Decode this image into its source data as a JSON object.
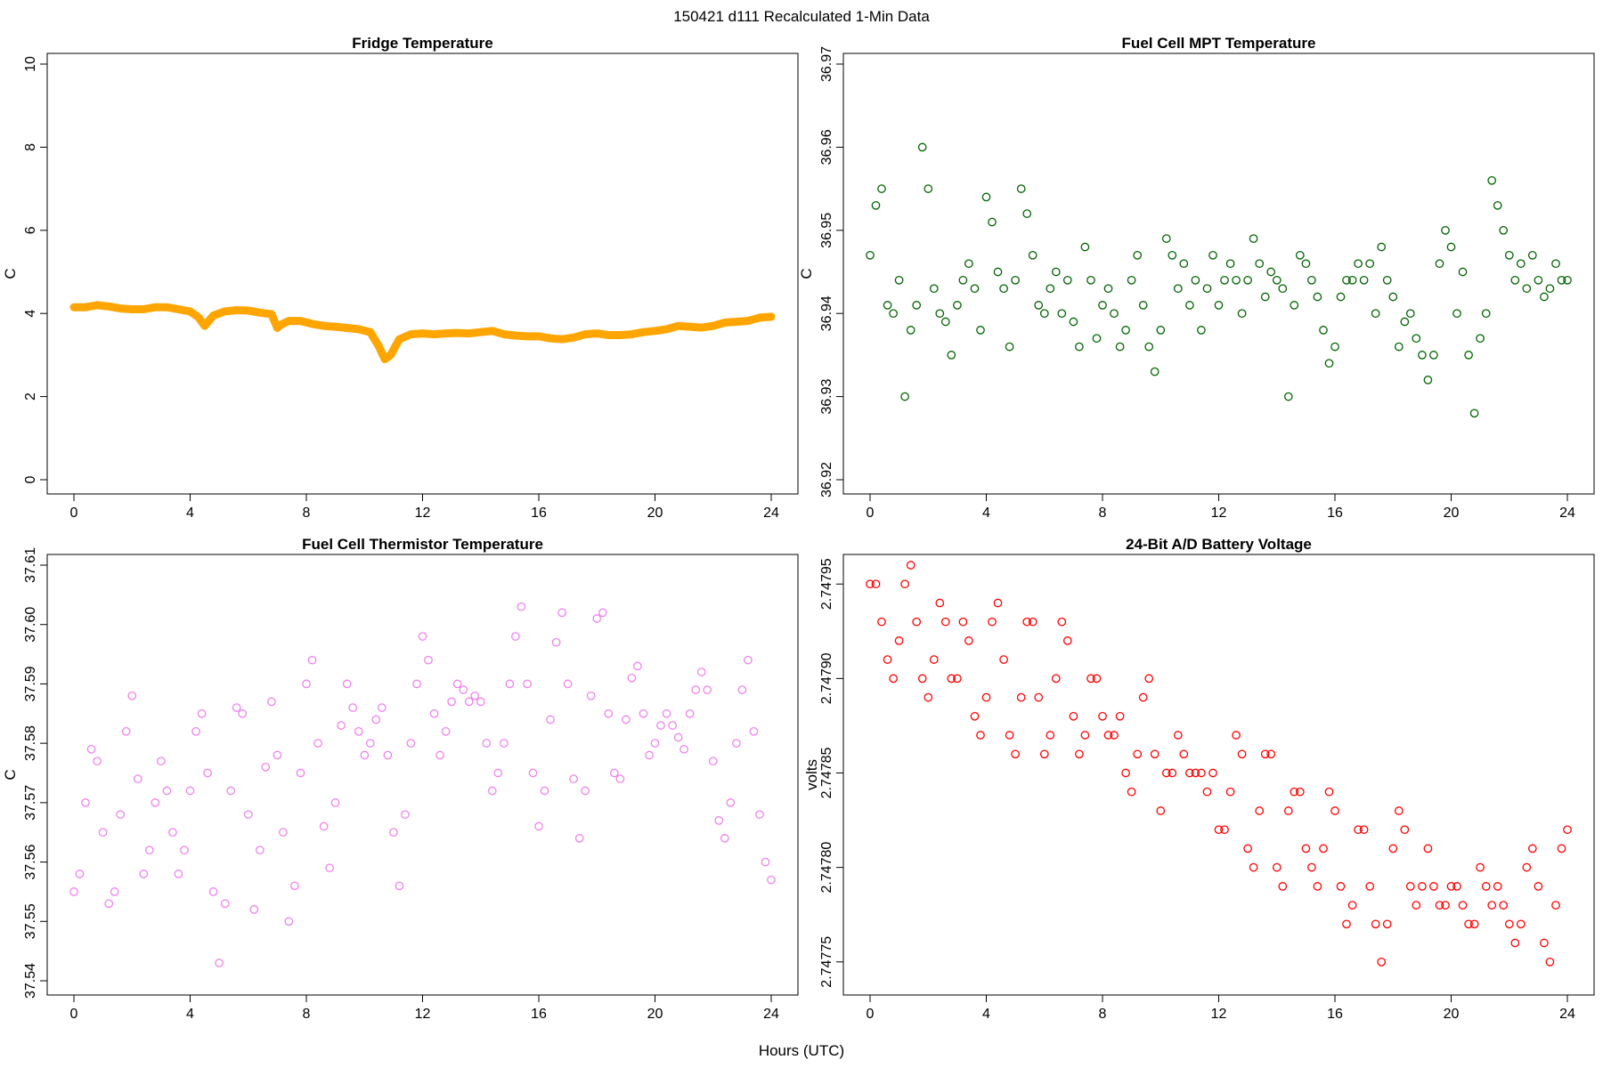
{
  "figure": {
    "title": "150421   d111   Recalculated 1-Min Data",
    "xlabel": "Hours (UTC)"
  },
  "chart_data": [
    {
      "id": "fridge",
      "type": "line",
      "title": "Fridge Temperature",
      "xlabel": "",
      "ylabel": "C",
      "xlim": [
        0,
        24
      ],
      "ylim": [
        0,
        10
      ],
      "xticks": [
        0,
        4,
        8,
        12,
        16,
        20,
        24
      ],
      "yticks": [
        0,
        2,
        4,
        6,
        8,
        10
      ],
      "ytick_labels": [
        "0",
        "2",
        "4",
        "6",
        "8",
        "10"
      ],
      "color": "#FFA500",
      "marker": "thick-line",
      "series": [
        {
          "name": "Fridge Temperature",
          "x": [
            0,
            0.4,
            0.8,
            1.2,
            1.6,
            2.0,
            2.4,
            2.8,
            3.2,
            3.6,
            4.0,
            4.3,
            4.5,
            4.8,
            5.2,
            5.6,
            6.0,
            6.4,
            6.8,
            7.0,
            7.1,
            7.4,
            7.8,
            8.2,
            8.6,
            9.0,
            9.4,
            9.8,
            10.2,
            10.5,
            10.7,
            10.9,
            11.2,
            11.6,
            12.0,
            12.4,
            12.8,
            13.2,
            13.6,
            14.0,
            14.4,
            14.8,
            15.2,
            15.6,
            16.0,
            16.4,
            16.8,
            17.2,
            17.6,
            18.0,
            18.4,
            18.8,
            19.2,
            19.6,
            20.0,
            20.4,
            20.8,
            21.2,
            21.6,
            22.0,
            22.4,
            22.8,
            23.2,
            23.6,
            24.0
          ],
          "y": [
            4.15,
            4.15,
            4.2,
            4.17,
            4.12,
            4.1,
            4.1,
            4.15,
            4.15,
            4.1,
            4.05,
            3.9,
            3.7,
            3.95,
            4.05,
            4.08,
            4.07,
            4.02,
            3.98,
            3.65,
            3.72,
            3.82,
            3.82,
            3.75,
            3.7,
            3.68,
            3.65,
            3.62,
            3.55,
            3.2,
            2.9,
            3.0,
            3.38,
            3.5,
            3.52,
            3.5,
            3.52,
            3.53,
            3.52,
            3.55,
            3.58,
            3.5,
            3.47,
            3.45,
            3.45,
            3.4,
            3.38,
            3.42,
            3.5,
            3.52,
            3.48,
            3.48,
            3.5,
            3.55,
            3.58,
            3.62,
            3.7,
            3.68,
            3.66,
            3.7,
            3.78,
            3.8,
            3.82,
            3.9,
            3.92
          ]
        }
      ]
    },
    {
      "id": "mpt",
      "type": "scatter",
      "title": "Fuel Cell MPT Temperature",
      "xlabel": "",
      "ylabel": "C",
      "xlim": [
        0,
        24
      ],
      "ylim": [
        36.92,
        36.97
      ],
      "xticks": [
        0,
        4,
        8,
        12,
        16,
        20,
        24
      ],
      "yticks": [
        36.92,
        36.93,
        36.94,
        36.95,
        36.96,
        36.97
      ],
      "ytick_labels": [
        "36.92",
        "36.93",
        "36.94",
        "36.95",
        "36.96",
        "36.97"
      ],
      "color": "#006400",
      "marker": "open-circle",
      "series": [
        {
          "name": "Fuel Cell MPT Temperature",
          "x": [
            0.0,
            0.2,
            0.4,
            0.6,
            0.8,
            1.0,
            1.2,
            1.4,
            1.6,
            1.8,
            2.0,
            2.2,
            2.4,
            2.6,
            2.8,
            3.0,
            3.2,
            3.4,
            3.6,
            3.8,
            4.0,
            4.2,
            4.4,
            4.6,
            4.8,
            5.0,
            5.2,
            5.4,
            5.6,
            5.8,
            6.0,
            6.2,
            6.4,
            6.6,
            6.8,
            7.0,
            7.2,
            7.4,
            7.6,
            7.8,
            8.0,
            8.2,
            8.4,
            8.6,
            8.8,
            9.0,
            9.2,
            9.4,
            9.6,
            9.8,
            10.0,
            10.2,
            10.4,
            10.6,
            10.8,
            11.0,
            11.2,
            11.4,
            11.6,
            11.8,
            12.0,
            12.2,
            12.4,
            12.6,
            12.8,
            13.0,
            13.2,
            13.4,
            13.6,
            13.8,
            14.0,
            14.2,
            14.4,
            14.6,
            14.8,
            15.0,
            15.2,
            15.4,
            15.6,
            15.8,
            16.0,
            16.2,
            16.4,
            16.6,
            16.8,
            17.0,
            17.2,
            17.4,
            17.6,
            17.8,
            18.0,
            18.2,
            18.4,
            18.6,
            18.8,
            19.0,
            19.2,
            19.4,
            19.6,
            19.8,
            20.0,
            20.2,
            20.4,
            20.6,
            20.8,
            21.0,
            21.2,
            21.4,
            21.6,
            21.8,
            22.0,
            22.2,
            22.4,
            22.6,
            22.8,
            23.0,
            23.2,
            23.4,
            23.6,
            23.8,
            24.0
          ],
          "y": [
            36.947,
            36.953,
            36.955,
            36.941,
            36.94,
            36.944,
            36.93,
            36.938,
            36.941,
            36.96,
            36.955,
            36.943,
            36.94,
            36.939,
            36.935,
            36.941,
            36.944,
            36.946,
            36.943,
            36.938,
            36.954,
            36.951,
            36.945,
            36.943,
            36.936,
            36.944,
            36.955,
            36.952,
            36.947,
            36.941,
            36.94,
            36.943,
            36.945,
            36.94,
            36.944,
            36.939,
            36.936,
            36.948,
            36.944,
            36.937,
            36.941,
            36.943,
            36.94,
            36.936,
            36.938,
            36.944,
            36.947,
            36.941,
            36.936,
            36.933,
            36.938,
            36.949,
            36.947,
            36.943,
            36.946,
            36.941,
            36.944,
            36.938,
            36.943,
            36.947,
            36.941,
            36.944,
            36.946,
            36.944,
            36.94,
            36.944,
            36.949,
            36.946,
            36.942,
            36.945,
            36.944,
            36.943,
            36.93,
            36.941,
            36.947,
            36.946,
            36.944,
            36.942,
            36.938,
            36.934,
            36.936,
            36.942,
            36.944,
            36.944,
            36.946,
            36.944,
            36.946,
            36.94,
            36.948,
            36.944,
            36.942,
            36.936,
            36.939,
            36.94,
            36.937,
            36.935,
            36.932,
            36.935,
            36.946,
            36.95,
            36.948,
            36.94,
            36.945,
            36.935,
            36.928,
            36.937,
            36.94,
            36.956,
            36.953,
            36.95,
            36.947,
            36.944,
            36.946,
            36.943,
            36.947,
            36.944,
            36.942,
            36.943,
            36.946,
            36.944,
            36.944
          ]
        }
      ]
    },
    {
      "id": "thermistor",
      "type": "scatter",
      "title": "Fuel Cell Thermistor Temperature",
      "xlabel": "",
      "ylabel": "C",
      "xlim": [
        0,
        24
      ],
      "ylim": [
        37.54,
        37.61
      ],
      "xticks": [
        0,
        4,
        8,
        12,
        16,
        20,
        24
      ],
      "yticks": [
        37.54,
        37.55,
        37.56,
        37.57,
        37.58,
        37.59,
        37.6,
        37.61
      ],
      "ytick_labels": [
        "37.54",
        "37.55",
        "37.56",
        "37.57",
        "37.58",
        "37.59",
        "37.60",
        "37.61"
      ],
      "color": "#EE82EE",
      "marker": "open-circle",
      "series": [
        {
          "name": "Fuel Cell Thermistor Temperature",
          "x": [
            0.0,
            0.2,
            0.4,
            0.6,
            0.8,
            1.0,
            1.2,
            1.4,
            1.6,
            1.8,
            2.0,
            2.2,
            2.4,
            2.6,
            2.8,
            3.0,
            3.2,
            3.4,
            3.6,
            3.8,
            4.0,
            4.2,
            4.4,
            4.6,
            4.8,
            5.0,
            5.2,
            5.4,
            5.6,
            5.8,
            6.0,
            6.2,
            6.4,
            6.6,
            6.8,
            7.0,
            7.2,
            7.4,
            7.6,
            7.8,
            8.0,
            8.2,
            8.4,
            8.6,
            8.8,
            9.0,
            9.2,
            9.4,
            9.6,
            9.8,
            10.0,
            10.2,
            10.4,
            10.6,
            10.8,
            11.0,
            11.2,
            11.4,
            11.6,
            11.8,
            12.0,
            12.2,
            12.4,
            12.6,
            12.8,
            13.0,
            13.2,
            13.4,
            13.6,
            13.8,
            14.0,
            14.2,
            14.4,
            14.6,
            14.8,
            15.0,
            15.2,
            15.4,
            15.6,
            15.8,
            16.0,
            16.2,
            16.4,
            16.6,
            16.8,
            17.0,
            17.2,
            17.4,
            17.6,
            17.8,
            18.0,
            18.2,
            18.4,
            18.6,
            18.8,
            19.0,
            19.2,
            19.4,
            19.6,
            19.8,
            20.0,
            20.2,
            20.4,
            20.6,
            20.8,
            21.0,
            21.2,
            21.4,
            21.6,
            21.8,
            22.0,
            22.2,
            22.4,
            22.6,
            22.8,
            23.0,
            23.2,
            23.4,
            23.6,
            23.8,
            24.0
          ],
          "y": [
            37.555,
            37.558,
            37.57,
            37.579,
            37.577,
            37.565,
            37.553,
            37.555,
            37.568,
            37.582,
            37.588,
            37.574,
            37.558,
            37.562,
            37.57,
            37.577,
            37.572,
            37.565,
            37.558,
            37.562,
            37.572,
            37.582,
            37.585,
            37.575,
            37.555,
            37.543,
            37.553,
            37.572,
            37.586,
            37.585,
            37.568,
            37.552,
            37.562,
            37.576,
            37.587,
            37.578,
            37.565,
            37.55,
            37.556,
            37.575,
            37.59,
            37.594,
            37.58,
            37.566,
            37.559,
            37.57,
            37.583,
            37.59,
            37.586,
            37.582,
            37.578,
            37.58,
            37.584,
            37.586,
            37.578,
            37.565,
            37.556,
            37.568,
            37.58,
            37.59,
            37.598,
            37.594,
            37.585,
            37.578,
            37.582,
            37.587,
            37.59,
            37.589,
            37.587,
            37.588,
            37.587,
            37.58,
            37.572,
            37.575,
            37.58,
            37.59,
            37.598,
            37.603,
            37.59,
            37.575,
            37.566,
            37.572,
            37.584,
            37.597,
            37.602,
            37.59,
            37.574,
            37.564,
            37.572,
            37.588,
            37.601,
            37.602,
            37.585,
            37.575,
            37.574,
            37.584,
            37.591,
            37.593,
            37.585,
            37.578,
            37.58,
            37.583,
            37.585,
            37.583,
            37.581,
            37.579,
            37.585,
            37.589,
            37.592,
            37.589,
            37.577,
            37.567,
            37.564,
            37.57,
            37.58,
            37.589,
            37.594,
            37.582,
            37.568,
            37.56,
            37.557
          ]
        }
      ]
    },
    {
      "id": "battery",
      "type": "scatter",
      "title": "24-Bit A/D Battery Voltage",
      "xlabel": "",
      "ylabel": "volts",
      "xlim": [
        0,
        24
      ],
      "ylim": [
        2.74774,
        2.74796
      ],
      "xticks": [
        0,
        4,
        8,
        12,
        16,
        20,
        24
      ],
      "yticks": [
        2.74775,
        2.7478,
        2.74785,
        2.7479,
        2.74795
      ],
      "ytick_labels": [
        "2.74775",
        "2.74780",
        "2.74785",
        "2.74790",
        "2.74795"
      ],
      "color": "#FF0000",
      "marker": "open-circle",
      "series": [
        {
          "name": "24-Bit A/D Battery Voltage",
          "x": [
            0.0,
            0.2,
            0.4,
            0.6,
            0.8,
            1.0,
            1.2,
            1.4,
            1.6,
            1.8,
            2.0,
            2.2,
            2.4,
            2.6,
            2.8,
            3.0,
            3.2,
            3.4,
            3.6,
            3.8,
            4.0,
            4.2,
            4.4,
            4.6,
            4.8,
            5.0,
            5.2,
            5.4,
            5.6,
            5.8,
            6.0,
            6.2,
            6.4,
            6.6,
            6.8,
            7.0,
            7.2,
            7.4,
            7.6,
            7.8,
            8.0,
            8.2,
            8.4,
            8.6,
            8.8,
            9.0,
            9.2,
            9.4,
            9.6,
            9.8,
            10.0,
            10.2,
            10.4,
            10.6,
            10.8,
            11.0,
            11.2,
            11.4,
            11.6,
            11.8,
            12.0,
            12.2,
            12.4,
            12.6,
            12.8,
            13.0,
            13.2,
            13.4,
            13.6,
            13.8,
            14.0,
            14.2,
            14.4,
            14.6,
            14.8,
            15.0,
            15.2,
            15.4,
            15.6,
            15.8,
            16.0,
            16.2,
            16.4,
            16.6,
            16.8,
            17.0,
            17.2,
            17.4,
            17.6,
            17.8,
            18.0,
            18.2,
            18.4,
            18.6,
            18.8,
            19.0,
            19.2,
            19.4,
            19.6,
            19.8,
            20.0,
            20.2,
            20.4,
            20.6,
            20.8,
            21.0,
            21.2,
            21.4,
            21.6,
            21.8,
            22.0,
            22.2,
            22.4,
            22.6,
            22.8,
            23.0,
            23.2,
            23.4,
            23.6,
            23.8,
            24.0
          ],
          "y": [
            2.74795,
            2.74795,
            2.74793,
            2.74791,
            2.7479,
            2.74792,
            2.74795,
            2.74796,
            2.74793,
            2.7479,
            2.74789,
            2.74791,
            2.74794,
            2.74793,
            2.7479,
            2.7479,
            2.74793,
            2.74792,
            2.74788,
            2.74787,
            2.74789,
            2.74793,
            2.74794,
            2.74791,
            2.74787,
            2.74786,
            2.74789,
            2.74793,
            2.74793,
            2.74789,
            2.74786,
            2.74787,
            2.7479,
            2.74793,
            2.74792,
            2.74788,
            2.74786,
            2.74787,
            2.7479,
            2.7479,
            2.74788,
            2.74787,
            2.74787,
            2.74788,
            2.74785,
            2.74784,
            2.74786,
            2.74789,
            2.7479,
            2.74786,
            2.74783,
            2.74785,
            2.74785,
            2.74787,
            2.74786,
            2.74785,
            2.74785,
            2.74785,
            2.74784,
            2.74785,
            2.74782,
            2.74782,
            2.74784,
            2.74787,
            2.74786,
            2.74781,
            2.7478,
            2.74783,
            2.74786,
            2.74786,
            2.7478,
            2.74779,
            2.74783,
            2.74784,
            2.74784,
            2.74781,
            2.7478,
            2.74779,
            2.74781,
            2.74784,
            2.74783,
            2.74779,
            2.74777,
            2.74778,
            2.74782,
            2.74782,
            2.74779,
            2.74777,
            2.74775,
            2.74777,
            2.74781,
            2.74783,
            2.74782,
            2.74779,
            2.74778,
            2.74779,
            2.74781,
            2.74779,
            2.74778,
            2.74778,
            2.74779,
            2.74779,
            2.74778,
            2.74777,
            2.74777,
            2.7478,
            2.74779,
            2.74778,
            2.74779,
            2.74778,
            2.74777,
            2.74776,
            2.74777,
            2.7478,
            2.74781,
            2.74779,
            2.74776,
            2.74775,
            2.74778,
            2.74781,
            2.74782
          ]
        }
      ]
    }
  ]
}
